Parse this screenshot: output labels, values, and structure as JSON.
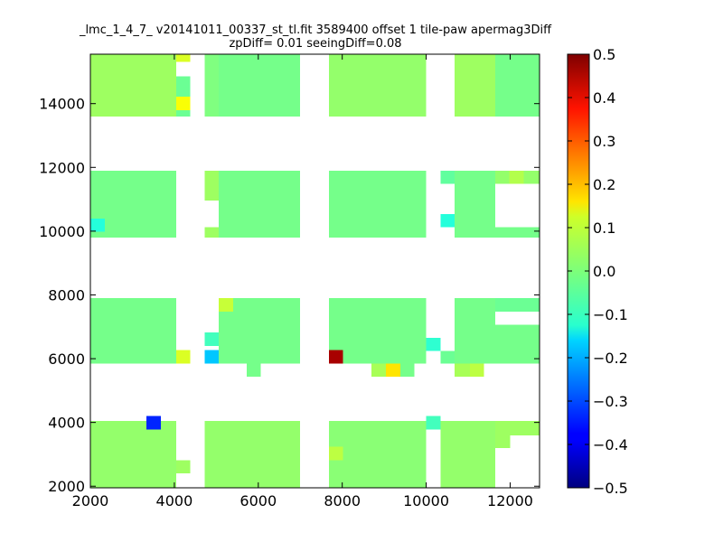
{
  "chart_data": {
    "type": "heatmap",
    "title": "_lmc_1_4_7_ v20141011_00337_st_tl.fit 3589400 offset 1 tile-paw apermag3Diff",
    "subtitle": "zpDiff= 0.01 seeingDiff=0.08",
    "xlabel": "",
    "ylabel": "",
    "xlim": [
      2000,
      12700
    ],
    "ylim": [
      1950,
      15550
    ],
    "x_ticks": [
      "2000",
      "4000",
      "6000",
      "8000",
      "10000",
      "12000"
    ],
    "y_ticks": [
      "2000",
      "4000",
      "6000",
      "8000",
      "10000",
      "12000",
      "14000"
    ],
    "cell_size": [
      340,
      420
    ],
    "colorbar": {
      "vmin": -0.5,
      "vmax": 0.5,
      "ticks": [
        "0.5",
        "0.4",
        "0.3",
        "0.2",
        "0.1",
        "0.0",
        "−0.1",
        "−0.2",
        "−0.3",
        "−0.4",
        "−0.5"
      ],
      "colormap": "jet"
    },
    "base_value": 0.0,
    "blocks": [
      {
        "x": [
          2000,
          4040
        ],
        "y": [
          1950,
          4050
        ],
        "value": 0.02
      },
      {
        "x": [
          4040,
          4380
        ],
        "y": [
          2400,
          2820
        ],
        "value": 0.03
      },
      {
        "x": [
          4720,
          7000
        ],
        "y": [
          1950,
          4050
        ],
        "value": 0.02
      },
      {
        "x": [
          7680,
          10000
        ],
        "y": [
          1950,
          4050
        ],
        "value": 0.01
      },
      {
        "x": [
          10340,
          11640
        ],
        "y": [
          1950,
          4050
        ],
        "value": 0.02
      },
      {
        "x": [
          11640,
          12000
        ],
        "y": [
          3200,
          4050
        ],
        "value": 0.03
      },
      {
        "x": [
          12000,
          12700
        ],
        "y": [
          3600,
          4050
        ],
        "value": 0.03
      },
      {
        "x": [
          2000,
          4040
        ],
        "y": [
          5850,
          7900
        ],
        "value": -0.01
      },
      {
        "x": [
          4720,
          5060
        ],
        "y": [
          6400,
          6820
        ],
        "value": -0.06
      },
      {
        "x": [
          5060,
          7000
        ],
        "y": [
          5850,
          7900
        ],
        "value": -0.01
      },
      {
        "x": [
          5720,
          6060
        ],
        "y": [
          5430,
          5850
        ],
        "value": -0.01
      },
      {
        "x": [
          7680,
          10000
        ],
        "y": [
          5850,
          7900
        ],
        "value": -0.01
      },
      {
        "x": [
          8700,
          9040
        ],
        "y": [
          5430,
          5850
        ],
        "value": 0.04
      },
      {
        "x": [
          9380,
          9720
        ],
        "y": [
          5430,
          5850
        ],
        "value": -0.01
      },
      {
        "x": [
          10340,
          10680
        ],
        "y": [
          5850,
          6240
        ],
        "value": -0.02
      },
      {
        "x": [
          10680,
          11640
        ],
        "y": [
          5850,
          7900
        ],
        "value": -0.01
      },
      {
        "x": [
          11640,
          12700
        ],
        "y": [
          5850,
          7060
        ],
        "value": -0.01
      },
      {
        "x": [
          11640,
          12700
        ],
        "y": [
          7480,
          7900
        ],
        "value": -0.02
      },
      {
        "x": [
          10680,
          11360
        ],
        "y": [
          5430,
          5850
        ],
        "value": 0.04
      },
      {
        "x": [
          2000,
          4040
        ],
        "y": [
          9800,
          11900
        ],
        "value": -0.01
      },
      {
        "x": [
          4720,
          5060
        ],
        "y": [
          10960,
          11900
        ],
        "value": 0.03
      },
      {
        "x": [
          4720,
          5060
        ],
        "y": [
          9800,
          10120
        ],
        "value": 0.03
      },
      {
        "x": [
          5060,
          7000
        ],
        "y": [
          9800,
          11900
        ],
        "value": -0.01
      },
      {
        "x": [
          7680,
          10000
        ],
        "y": [
          9800,
          11900
        ],
        "value": -0.01
      },
      {
        "x": [
          10340,
          10680
        ],
        "y": [
          11480,
          11900
        ],
        "value": -0.03
      },
      {
        "x": [
          10680,
          11640
        ],
        "y": [
          9800,
          11900
        ],
        "value": -0.01
      },
      {
        "x": [
          11640,
          12700
        ],
        "y": [
          9800,
          10120
        ],
        "value": -0.01
      },
      {
        "x": [
          11640,
          12700
        ],
        "y": [
          11480,
          11900
        ],
        "value": 0.02
      },
      {
        "x": [
          2000,
          4040
        ],
        "y": [
          13600,
          15550
        ],
        "value": 0.03
      },
      {
        "x": [
          4040,
          4380
        ],
        "y": [
          13600,
          14850
        ],
        "value": -0.02
      },
      {
        "x": [
          4720,
          5060
        ],
        "y": [
          13600,
          15550
        ],
        "value": 0.0
      },
      {
        "x": [
          5060,
          7000
        ],
        "y": [
          13600,
          15550
        ],
        "value": -0.01
      },
      {
        "x": [
          7680,
          10000
        ],
        "y": [
          13600,
          15550
        ],
        "value": 0.02
      },
      {
        "x": [
          10680,
          12700
        ],
        "y": [
          13600,
          15550
        ],
        "value": 0.03
      },
      {
        "x": [
          11640,
          12700
        ],
        "y": [
          13600,
          15550
        ],
        "value": -0.01
      }
    ],
    "cells": [
      {
        "x": 3340,
        "y": 3780,
        "value": -0.34
      },
      {
        "x": 2000,
        "y": 9980,
        "value": -0.09
      },
      {
        "x": 4040,
        "y": 13800,
        "value": 0.12
      },
      {
        "x": 4040,
        "y": 15310,
        "value": 0.09
      },
      {
        "x": 4040,
        "y": 5850,
        "value": 0.09
      },
      {
        "x": 4720,
        "y": 5850,
        "value": -0.18
      },
      {
        "x": 5060,
        "y": 7480,
        "value": 0.07
      },
      {
        "x": 7680,
        "y": 5850,
        "value": 0.46
      },
      {
        "x": 9040,
        "y": 5430,
        "value": 0.15
      },
      {
        "x": 10000,
        "y": 6240,
        "value": -0.08
      },
      {
        "x": 10000,
        "y": 3780,
        "value": -0.06
      },
      {
        "x": 10340,
        "y": 10120,
        "value": -0.09
      },
      {
        "x": 11040,
        "y": 5430,
        "value": 0.06
      },
      {
        "x": 7680,
        "y": 2820,
        "value": 0.06
      },
      {
        "x": 11980,
        "y": 11480,
        "value": 0.05
      }
    ]
  }
}
